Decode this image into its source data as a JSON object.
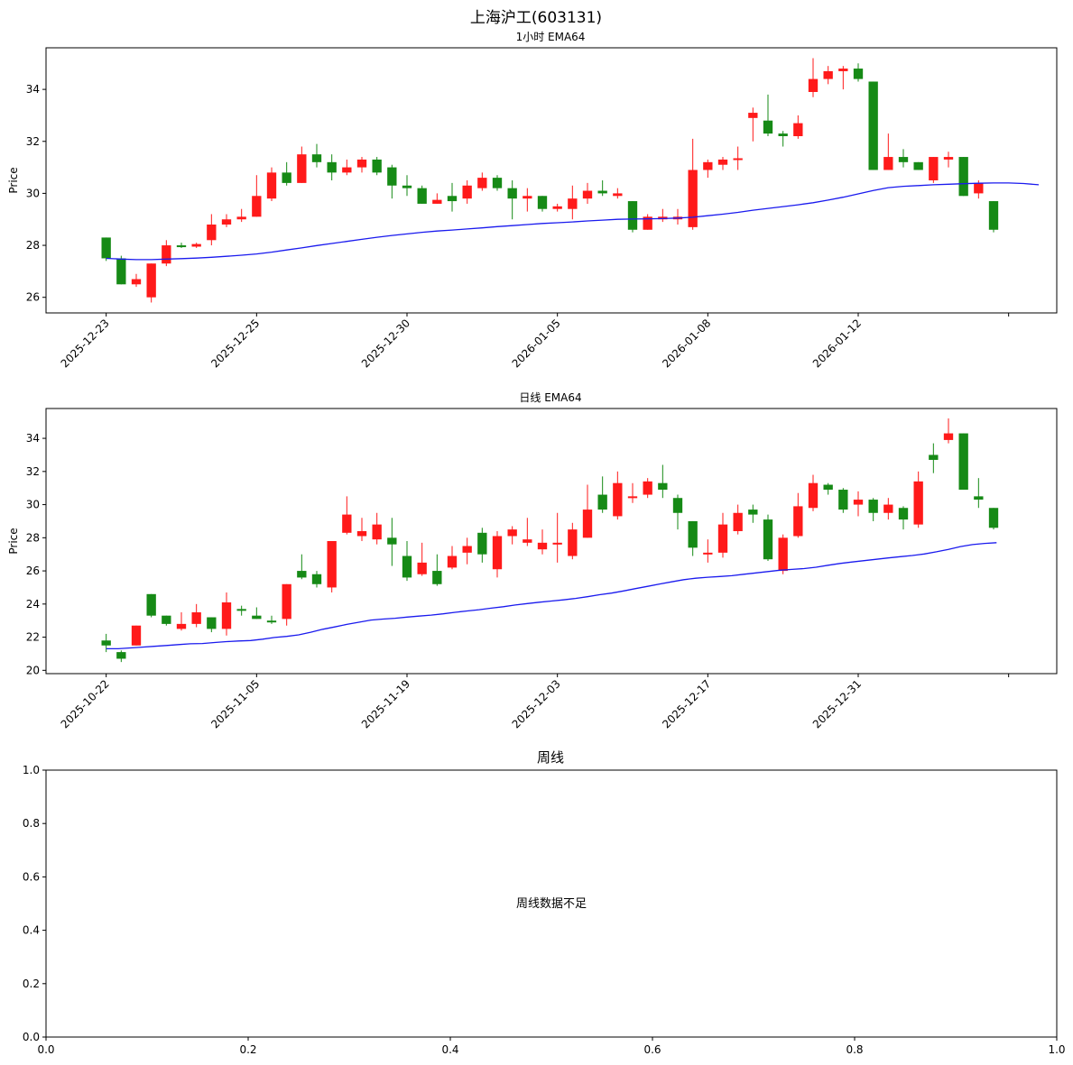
{
  "figure": {
    "title": "上海沪工(603131)",
    "colors": {
      "up": "#ff1a1a",
      "down": "#168a16",
      "ema": "#1a1aee"
    }
  },
  "chart_data": [
    {
      "type": "candlestick",
      "title": "1小时 EMA64",
      "ylabel": "Price",
      "ylim": [
        25.4,
        35.6
      ],
      "yticks": [
        26,
        28,
        30,
        32,
        34
      ],
      "xtick_labels": [
        "2025-12-23",
        "2025-12-25",
        "2025-12-30",
        "2026-01-05",
        "2026-01-08",
        "2026-01-12",
        ""
      ],
      "xtick_positions": [
        0,
        10,
        20,
        30,
        40,
        50,
        60
      ],
      "xlim": [
        -4,
        63.2
      ],
      "candles": [
        [
          28.3,
          27.5,
          28.3,
          27.4
        ],
        [
          27.5,
          26.5,
          27.6,
          26.5
        ],
        [
          26.5,
          26.7,
          26.9,
          26.4
        ],
        [
          26.0,
          27.3,
          27.3,
          25.8
        ],
        [
          27.3,
          28.0,
          28.2,
          27.2
        ],
        [
          28.0,
          27.95,
          28.1,
          27.9
        ],
        [
          27.95,
          28.05,
          28.1,
          27.9
        ],
        [
          28.2,
          28.8,
          29.2,
          28.0
        ],
        [
          28.8,
          29.0,
          29.2,
          28.7
        ],
        [
          29.0,
          29.1,
          29.4,
          28.9
        ],
        [
          29.1,
          29.9,
          30.7,
          29.1
        ],
        [
          29.8,
          30.8,
          31.0,
          29.7
        ],
        [
          30.8,
          30.4,
          31.2,
          30.3
        ],
        [
          30.4,
          31.5,
          31.8,
          30.4
        ],
        [
          31.5,
          31.2,
          31.9,
          31.0
        ],
        [
          31.2,
          30.8,
          31.5,
          30.5
        ],
        [
          30.8,
          31.0,
          31.3,
          30.7
        ],
        [
          31.0,
          31.3,
          31.4,
          30.8
        ],
        [
          31.3,
          30.8,
          31.4,
          30.7
        ],
        [
          31.0,
          30.3,
          31.1,
          29.8
        ],
        [
          30.3,
          30.2,
          30.7,
          29.9
        ],
        [
          30.2,
          29.6,
          30.3,
          29.6
        ],
        [
          29.6,
          29.75,
          30.0,
          29.6
        ],
        [
          29.9,
          29.7,
          30.4,
          29.3
        ],
        [
          29.8,
          30.3,
          30.5,
          29.6
        ],
        [
          30.2,
          30.6,
          30.8,
          30.1
        ],
        [
          30.6,
          30.2,
          30.7,
          30.1
        ],
        [
          30.2,
          29.8,
          30.5,
          29.0
        ],
        [
          29.8,
          29.9,
          30.2,
          29.3
        ],
        [
          29.9,
          29.4,
          29.9,
          29.3
        ],
        [
          29.4,
          29.5,
          29.6,
          29.3
        ],
        [
          29.4,
          29.8,
          30.3,
          29.0
        ],
        [
          29.8,
          30.1,
          30.4,
          29.6
        ],
        [
          30.1,
          30.0,
          30.5,
          29.9
        ],
        [
          29.9,
          30.0,
          30.2,
          29.8
        ],
        [
          29.7,
          28.6,
          29.7,
          28.5
        ],
        [
          28.6,
          29.1,
          29.2,
          28.6
        ],
        [
          29.0,
          29.1,
          29.4,
          28.9
        ],
        [
          29.0,
          29.1,
          29.4,
          28.8
        ],
        [
          28.7,
          30.9,
          32.1,
          28.6
        ],
        [
          30.9,
          31.2,
          31.3,
          30.6
        ],
        [
          31.1,
          31.3,
          31.4,
          30.9
        ],
        [
          31.3,
          31.35,
          31.8,
          30.9
        ],
        [
          32.9,
          33.1,
          33.3,
          32.0
        ],
        [
          32.8,
          32.3,
          33.8,
          32.2
        ],
        [
          32.3,
          32.2,
          32.4,
          31.8
        ],
        [
          32.2,
          32.7,
          33.0,
          32.1
        ],
        [
          33.9,
          34.4,
          35.2,
          33.7
        ],
        [
          34.4,
          34.7,
          34.9,
          34.2
        ],
        [
          34.7,
          34.8,
          34.9,
          34.0
        ],
        [
          34.8,
          34.4,
          35.0,
          34.3
        ],
        [
          34.3,
          30.9,
          34.3,
          30.9
        ],
        [
          30.9,
          31.4,
          32.3,
          30.9
        ],
        [
          31.4,
          31.2,
          31.7,
          31.0
        ],
        [
          31.2,
          30.9,
          31.2,
          30.9
        ],
        [
          30.5,
          31.4,
          31.4,
          30.4
        ],
        [
          31.3,
          31.4,
          31.6,
          31.0
        ],
        [
          31.4,
          29.9,
          31.4,
          29.9
        ],
        [
          30.0,
          30.4,
          30.5,
          29.8
        ],
        [
          29.7,
          28.6,
          29.7,
          28.5
        ]
      ],
      "ema": [
        27.5,
        27.47,
        27.45,
        27.45,
        27.47,
        27.49,
        27.51,
        27.54,
        27.58,
        27.62,
        27.67,
        27.74,
        27.82,
        27.9,
        27.99,
        28.07,
        28.15,
        28.23,
        28.31,
        28.38,
        28.44,
        28.5,
        28.55,
        28.59,
        28.63,
        28.67,
        28.72,
        28.76,
        28.8,
        28.84,
        28.87,
        28.9,
        28.94,
        28.97,
        29.0,
        29.01,
        29.02,
        29.03,
        29.05,
        29.08,
        29.14,
        29.2,
        29.27,
        29.35,
        29.42,
        29.49,
        29.56,
        29.64,
        29.74,
        29.85,
        29.98,
        30.11,
        30.22,
        30.27,
        30.3,
        30.33,
        30.35,
        30.37,
        30.39,
        30.4,
        30.4,
        30.38,
        30.33
      ],
      "ema_x_start": 0
    },
    {
      "type": "candlestick",
      "title": "日线 EMA64",
      "ylabel": "Price",
      "ylim": [
        19.8,
        35.8
      ],
      "yticks": [
        20,
        22,
        24,
        26,
        28,
        30,
        32,
        34
      ],
      "xtick_labels": [
        "2025-10-22",
        "2025-11-05",
        "2025-11-19",
        "2025-12-03",
        "2025-12-17",
        "2025-12-31",
        ""
      ],
      "xtick_positions": [
        0,
        10,
        20,
        30,
        40,
        50,
        60
      ],
      "xlim": [
        -4,
        63.2
      ],
      "candles": [
        [
          21.8,
          21.5,
          22.2,
          21.1
        ],
        [
          21.1,
          20.7,
          21.2,
          20.5
        ],
        [
          21.5,
          22.7,
          22.7,
          21.5
        ],
        [
          24.6,
          23.3,
          24.6,
          23.2
        ],
        [
          23.3,
          22.8,
          23.3,
          22.7
        ],
        [
          22.5,
          22.8,
          23.5,
          22.4
        ],
        [
          22.8,
          23.5,
          24.0,
          22.6
        ],
        [
          23.2,
          22.5,
          23.2,
          22.3
        ],
        [
          22.5,
          24.1,
          24.7,
          22.1
        ],
        [
          23.7,
          23.6,
          23.9,
          23.3
        ],
        [
          23.3,
          23.1,
          23.8,
          23.1
        ],
        [
          23.0,
          22.9,
          23.3,
          22.8
        ],
        [
          23.1,
          25.2,
          25.2,
          22.7
        ],
        [
          26.0,
          25.6,
          27.0,
          25.5
        ],
        [
          25.8,
          25.2,
          26.0,
          25.0
        ],
        [
          25.0,
          27.8,
          27.8,
          24.7
        ],
        [
          28.3,
          29.4,
          30.5,
          28.2
        ],
        [
          28.1,
          28.4,
          29.2,
          27.8
        ],
        [
          27.9,
          28.8,
          29.5,
          27.6
        ],
        [
          28.0,
          27.6,
          29.2,
          26.3
        ],
        [
          26.9,
          25.6,
          27.8,
          25.4
        ],
        [
          25.8,
          26.5,
          27.7,
          25.7
        ],
        [
          26.0,
          25.2,
          27.0,
          25.1
        ],
        [
          26.2,
          26.9,
          27.5,
          26.1
        ],
        [
          27.1,
          27.5,
          28.0,
          26.4
        ],
        [
          28.3,
          27.0,
          28.6,
          26.5
        ],
        [
          26.1,
          28.1,
          28.4,
          25.6
        ],
        [
          28.1,
          28.5,
          28.7,
          27.6
        ],
        [
          27.7,
          27.9,
          29.2,
          27.5
        ],
        [
          27.3,
          27.7,
          28.5,
          27.0
        ],
        [
          27.7,
          27.7,
          29.5,
          26.5
        ],
        [
          26.9,
          28.5,
          28.9,
          26.7
        ],
        [
          28.0,
          29.7,
          31.2,
          28.0
        ],
        [
          30.6,
          29.7,
          31.7,
          29.5
        ],
        [
          29.3,
          31.3,
          32.0,
          29.1
        ],
        [
          30.4,
          30.5,
          31.3,
          30.1
        ],
        [
          30.6,
          31.4,
          31.6,
          30.4
        ],
        [
          31.3,
          30.9,
          32.4,
          30.4
        ],
        [
          30.4,
          29.5,
          30.6,
          28.5
        ],
        [
          29.0,
          27.4,
          29.0,
          26.9
        ],
        [
          27.0,
          27.1,
          27.9,
          26.5
        ],
        [
          27.1,
          28.8,
          29.5,
          26.8
        ],
        [
          28.4,
          29.5,
          30.0,
          28.2
        ],
        [
          29.7,
          29.4,
          30.0,
          28.9
        ],
        [
          29.1,
          26.7,
          29.4,
          26.6
        ],
        [
          26.0,
          28.0,
          28.2,
          25.8
        ],
        [
          28.1,
          29.9,
          30.7,
          28.0
        ],
        [
          29.8,
          31.3,
          31.8,
          29.6
        ],
        [
          31.2,
          30.9,
          31.3,
          30.6
        ],
        [
          30.9,
          29.7,
          31.0,
          29.5
        ],
        [
          30.0,
          30.3,
          30.8,
          29.3
        ],
        [
          30.3,
          29.5,
          30.4,
          29.0
        ],
        [
          29.5,
          30.0,
          30.4,
          29.1
        ],
        [
          29.8,
          29.1,
          29.9,
          28.5
        ],
        [
          28.8,
          31.4,
          32.0,
          28.6
        ],
        [
          33.0,
          32.7,
          33.7,
          31.9
        ],
        [
          33.9,
          34.3,
          35.2,
          33.7
        ],
        [
          34.3,
          30.9,
          34.3,
          30.9
        ],
        [
          30.5,
          30.3,
          31.6,
          29.8
        ],
        [
          29.8,
          28.6,
          29.8,
          28.5
        ]
      ],
      "ema": [
        21.3,
        21.3,
        21.35,
        21.4,
        21.45,
        21.5,
        21.55,
        21.6,
        21.62,
        21.68,
        21.73,
        21.77,
        21.8,
        21.88,
        21.98,
        22.05,
        22.14,
        22.3,
        22.48,
        22.62,
        22.77,
        22.9,
        23.03,
        23.09,
        23.14,
        23.21,
        23.27,
        23.33,
        23.41,
        23.5,
        23.58,
        23.66,
        23.75,
        23.84,
        23.94,
        24.03,
        24.11,
        24.18,
        24.25,
        24.34,
        24.44,
        24.56,
        24.66,
        24.79,
        24.93,
        25.07,
        25.21,
        25.34,
        25.47,
        25.56,
        25.62,
        25.66,
        25.71,
        25.8,
        25.88,
        25.96,
        26.04,
        26.09,
        26.14,
        26.22,
        26.34,
        26.45,
        26.54,
        26.62,
        26.7,
        26.78,
        26.86,
        26.93,
        27.02,
        27.15,
        27.3,
        27.47,
        27.59,
        27.66,
        27.7
      ],
      "ema_x_start": 0,
      "ema_x_step": 0.8
    },
    {
      "type": "empty",
      "title": "周线",
      "message": "周线数据不足",
      "xlim": [
        0,
        1
      ],
      "ylim": [
        0,
        1
      ],
      "xtick_labels": [
        "0.0",
        "0.2",
        "0.4",
        "0.6",
        "0.8",
        "1.0"
      ],
      "ytick_labels": [
        "0.0",
        "0.2",
        "0.4",
        "0.6",
        "0.8",
        "1.0"
      ]
    }
  ]
}
